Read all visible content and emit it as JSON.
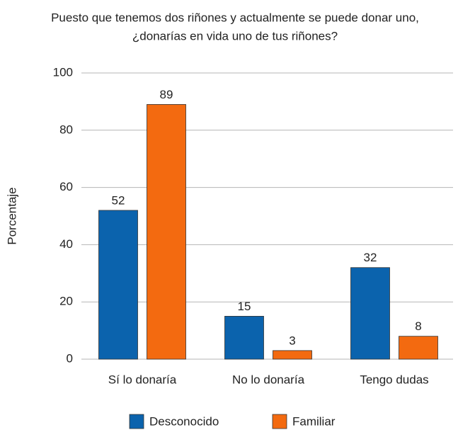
{
  "chart_data": {
    "type": "bar",
    "title": [
      "Puesto que tenemos dos riñones y actualmente se puede donar uno,",
      "¿donarías en vida uno de tus riñones?"
    ],
    "ylabel": "Porcentaje",
    "categories": [
      "Sí lo donaría",
      "No lo donaría",
      "Tengo dudas"
    ],
    "series": [
      {
        "name": "Desconocido",
        "color": "#0b63ad",
        "values": [
          52,
          15,
          32
        ]
      },
      {
        "name": "Familiar",
        "color": "#f36a10",
        "values": [
          89,
          3,
          8
        ]
      }
    ],
    "ylim": [
      0,
      100
    ],
    "yticks": [
      0,
      20,
      40,
      60,
      80,
      100
    ],
    "grid": true
  }
}
